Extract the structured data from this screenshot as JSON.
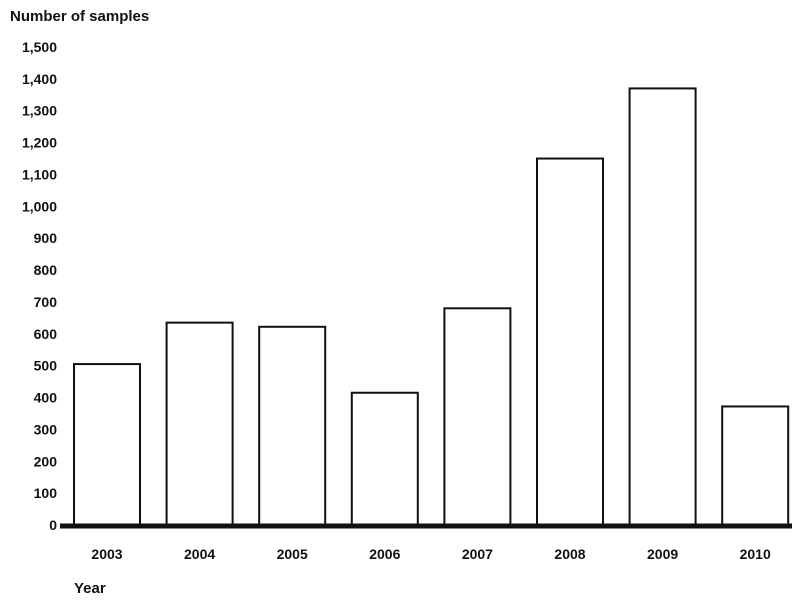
{
  "chart_data": {
    "type": "bar",
    "title": "",
    "ylabel": "Number of samples",
    "xlabel": "Year",
    "categories": [
      "2003",
      "2004",
      "2005",
      "2006",
      "2007",
      "2008",
      "2009",
      "2010"
    ],
    "values": [
      505,
      635,
      622,
      415,
      680,
      1150,
      1370,
      372
    ],
    "ylim": [
      0,
      1500
    ],
    "yticks": [
      "0",
      "100",
      "200",
      "300",
      "400",
      "500",
      "600",
      "700",
      "800",
      "900",
      "1,000",
      "1,100",
      "1,200",
      "1,300",
      "1,400",
      "1,500"
    ],
    "grid": false,
    "bar_fill": "#ffffff",
    "bar_stroke": "#111111"
  }
}
